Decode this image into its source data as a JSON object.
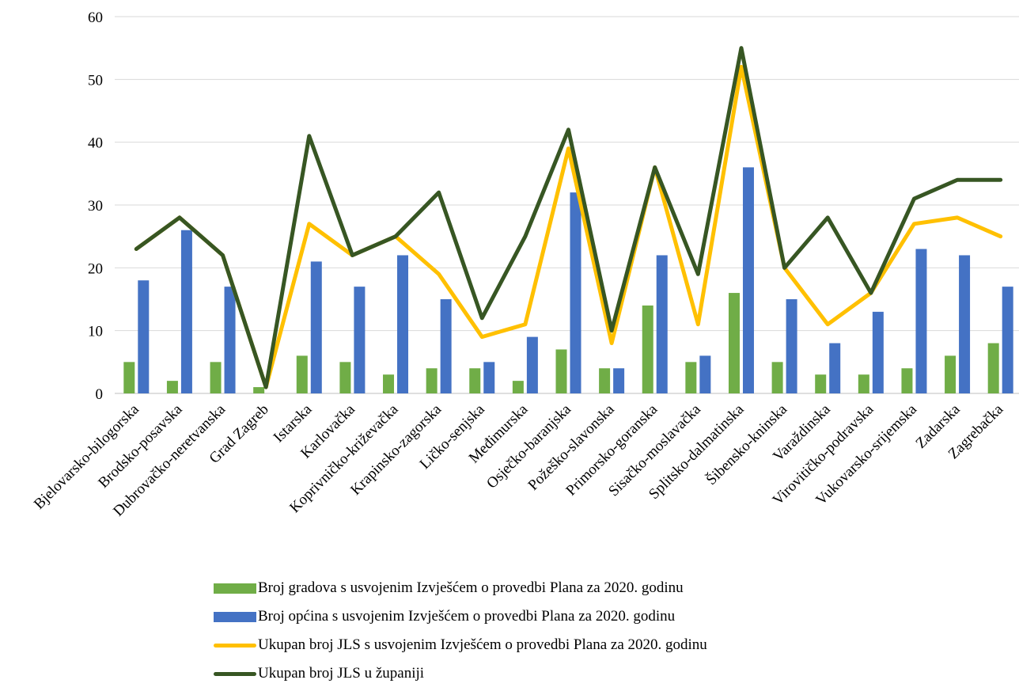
{
  "chart_data": {
    "type": "bar",
    "categories": [
      "Bjelovarsko-bilogorska",
      "Brodsko-posavska",
      "Dubrovačko-neretvanska",
      "Grad Zagreb",
      "Istarska",
      "Karlovačka",
      "Koprivničko-križevačka",
      "Krapinsko-zagorska",
      "Ličko-senjska",
      "Međimurska",
      "Osječko-baranjska",
      "Požeško-slavonska",
      "Primorsko-goranska",
      "Sisačko-moslavačka",
      "Splitsko-dalmatinska",
      "Šibensko-kninska",
      "Varaždinska",
      "Virovitičko-podravska",
      "Vukovarsko-srijemska",
      "Zadarska",
      "Zagrebačka"
    ],
    "ylim": [
      0,
      60
    ],
    "yticks": [
      0,
      10,
      20,
      30,
      40,
      50,
      60
    ],
    "grid": true,
    "legend_position": "bottom",
    "series": [
      {
        "name": "Broj gradova s usvojenim Izvješćem o provedbi Plana za 2020. godinu",
        "kind": "bar",
        "color": "#70ad47",
        "values": [
          5,
          2,
          5,
          1,
          6,
          5,
          3,
          4,
          4,
          2,
          7,
          4,
          14,
          5,
          16,
          5,
          3,
          3,
          4,
          6,
          8
        ]
      },
      {
        "name": "Broj općina s usvojenim Izvješćem o provedbi Plana za 2020. godinu",
        "kind": "bar",
        "color": "#4472c4",
        "values": [
          18,
          26,
          17,
          0,
          21,
          17,
          22,
          15,
          5,
          9,
          32,
          4,
          22,
          6,
          36,
          15,
          8,
          13,
          23,
          22,
          17
        ]
      },
      {
        "name": "Ukupan broj JLS s usvojenim Izvješćem o provedbi Plana za 2020. godinu",
        "kind": "line",
        "color": "#ffc000",
        "values": [
          23,
          28,
          22,
          1,
          27,
          22,
          25,
          19,
          9,
          11,
          39,
          8,
          36,
          11,
          52,
          20,
          11,
          16,
          27,
          28,
          25
        ]
      },
      {
        "name": "Ukupan broj JLS u županiji",
        "kind": "line",
        "color": "#375623",
        "values": [
          23,
          28,
          22,
          1,
          41,
          22,
          25,
          32,
          12,
          25,
          42,
          10,
          36,
          19,
          55,
          20,
          28,
          16,
          31,
          34,
          34
        ]
      }
    ]
  }
}
